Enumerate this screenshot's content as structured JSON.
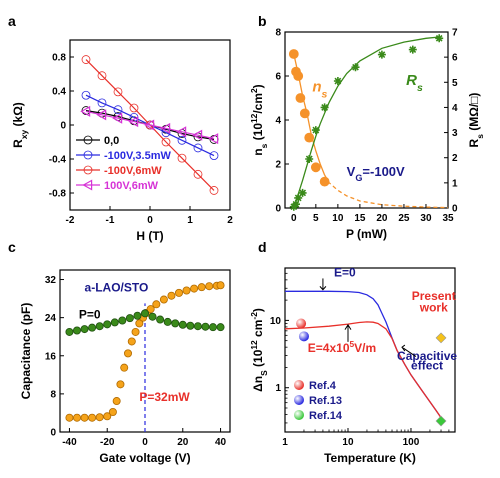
{
  "chart_data": [
    {
      "panel": "a",
      "type": "line",
      "xlabel": "H (T)",
      "ylabel": "R",
      "ylabel_sub": "xy",
      "ylabel_unit": " (kΩ)",
      "xlim": [
        -2,
        2
      ],
      "ylim": [
        -1.0,
        1.0
      ],
      "xticks": [
        -2,
        -1,
        0,
        1,
        2
      ],
      "yticks": [
        -0.8,
        -0.4,
        0,
        0.4,
        0.8
      ],
      "ytick_labels": [
        "-0.8",
        "-0.4",
        "0",
        "0.4",
        "0.8"
      ],
      "legend_position": "bottom-left",
      "series": [
        {
          "name": "0,0",
          "color": "#000000",
          "marker": "circle",
          "x": [
            -1.6,
            -1.2,
            -0.8,
            -0.4,
            0,
            0.4,
            0.8,
            1.2,
            1.6
          ],
          "y": [
            0.17,
            0.14,
            0.1,
            0.05,
            0.0,
            -0.05,
            -0.1,
            -0.14,
            -0.17
          ]
        },
        {
          "name": "-100V,3.5mW",
          "color": "#2a2ae0",
          "marker": "circle",
          "x": [
            -1.6,
            -1.2,
            -0.8,
            -0.4,
            0,
            0.4,
            0.8,
            1.2,
            1.6
          ],
          "y": [
            0.35,
            0.26,
            0.18,
            0.09,
            0.0,
            -0.09,
            -0.18,
            -0.27,
            -0.36
          ]
        },
        {
          "name": "-100V,6mW",
          "color": "#e8302a",
          "marker": "circle",
          "x": [
            -1.6,
            -1.2,
            -0.8,
            -0.4,
            0,
            0.4,
            0.8,
            1.2,
            1.6
          ],
          "y": [
            0.77,
            0.58,
            0.39,
            0.2,
            0.0,
            -0.2,
            -0.39,
            -0.58,
            -0.77
          ]
        },
        {
          "name": "100V,6mW",
          "color": "#d634d6",
          "marker": "triangle-left",
          "x": [
            -1.6,
            -1.2,
            -0.8,
            -0.4,
            0,
            0.4,
            0.8,
            1.2,
            1.6
          ],
          "y": [
            0.16,
            0.12,
            0.08,
            0.04,
            0.0,
            -0.04,
            -0.08,
            -0.12,
            -0.16
          ]
        }
      ]
    },
    {
      "panel": "b",
      "type": "scatter",
      "xlabel": "P (mW)",
      "ylabel": "n",
      "ylabel_sub": "s",
      "ylabel_unit": " (10",
      "ylabel_sup": "12",
      "ylabel_tail": "/cm",
      "ylabel_sup2": "2",
      "ylabel_close": ")",
      "y2label": "R",
      "y2label_sub": "s",
      "y2label_unit": " (MΩ/□)",
      "xlim": [
        -2,
        35
      ],
      "ylim": [
        0,
        8
      ],
      "y2lim": [
        0,
        7
      ],
      "xticks": [
        0,
        5,
        10,
        15,
        20,
        25,
        30,
        35
      ],
      "yticks": [
        0,
        2,
        4,
        6,
        8
      ],
      "y2ticks": [
        0,
        1,
        2,
        3,
        4,
        5,
        6,
        7
      ],
      "annotations": [
        {
          "text": "n",
          "sub": "s",
          "color": "#f5922a"
        },
        {
          "text": "R",
          "sub": "s",
          "color": "#3a8a1a"
        },
        {
          "text": "V",
          "sub": "G",
          "tail": "=-100V",
          "color": "#1a1a8a"
        }
      ],
      "series": [
        {
          "name": "n_s",
          "axis": "left",
          "color": "#f5922a",
          "marker": "circle",
          "x": [
            0,
            0.5,
            1,
            1.5,
            2.5,
            3.5,
            5,
            7
          ],
          "y": [
            7.0,
            6.2,
            6.0,
            5.0,
            4.3,
            3.2,
            1.85,
            1.2
          ],
          "fit_x": [
            0,
            1,
            2,
            3,
            4,
            5,
            6,
            7,
            8,
            10,
            12,
            15,
            20,
            25,
            30,
            35
          ],
          "fit_y": [
            7.0,
            6.1,
            5.1,
            4.3,
            3.3,
            2.6,
            2.0,
            1.5,
            1.15,
            0.8,
            0.55,
            0.32,
            0.15,
            0.08,
            0.04,
            0.02
          ]
        },
        {
          "name": "R_s",
          "axis": "right",
          "color": "#3a8a1a",
          "marker": "star",
          "x": [
            0,
            0.5,
            1,
            2,
            3.5,
            5,
            7,
            10,
            14,
            20,
            27,
            33
          ],
          "y": [
            0.05,
            0.15,
            0.4,
            0.6,
            1.95,
            3.1,
            4.0,
            5.05,
            5.6,
            6.1,
            6.3,
            6.75
          ],
          "fit_x": [
            0,
            1,
            2,
            3,
            4,
            5,
            6,
            8,
            10,
            12,
            15,
            20,
            25,
            30,
            33
          ],
          "fit_y": [
            0.0,
            0.55,
            1.1,
            1.7,
            2.3,
            2.85,
            3.35,
            4.2,
            4.85,
            5.35,
            5.85,
            6.35,
            6.6,
            6.75,
            6.8
          ]
        }
      ]
    },
    {
      "panel": "c",
      "type": "scatter",
      "xlabel": "Gate voltage (V)",
      "ylabel": "Capacitance (pF)",
      "xlim": [
        -45,
        45
      ],
      "ylim": [
        0,
        34
      ],
      "xticks": [
        -40,
        -20,
        0,
        20,
        40
      ],
      "yticks": [
        0,
        8,
        16,
        24,
        32
      ],
      "annotations": [
        {
          "text": "a-LAO/STO",
          "color": "#1a1a8a"
        },
        {
          "text": "P=0",
          "color": "#000000"
        },
        {
          "text": "P=32mW",
          "color": "#e8302a"
        }
      ],
      "series": [
        {
          "name": "P=0",
          "color": "#3a8a1a",
          "marker": "circle",
          "x": [
            -40,
            -36,
            -32,
            -28,
            -24,
            -20,
            -16,
            -12,
            -8,
            -4,
            0,
            4,
            8,
            12,
            16,
            20,
            24,
            28,
            32,
            36,
            40
          ],
          "y": [
            21.0,
            21.3,
            21.6,
            21.9,
            22.2,
            22.6,
            23.0,
            23.4,
            23.9,
            24.4,
            24.9,
            24.2,
            23.6,
            23.1,
            22.8,
            22.5,
            22.3,
            22.2,
            22.1,
            22.0,
            22.0
          ]
        },
        {
          "name": "P=32mW",
          "color": "#f5a31a",
          "marker": "circle",
          "x": [
            -40,
            -36,
            -32,
            -28,
            -24,
            -20,
            -17,
            -15,
            -13,
            -11,
            -9,
            -7,
            -5,
            -3,
            -1,
            1,
            3,
            6,
            10,
            14,
            18,
            22,
            26,
            30,
            34,
            38,
            40
          ],
          "y": [
            3.0,
            3.0,
            3.0,
            3.0,
            3.1,
            3.3,
            4.2,
            6.5,
            10.0,
            13.5,
            16.5,
            19.0,
            21.0,
            22.8,
            24.0,
            25.0,
            25.8,
            26.8,
            27.8,
            28.6,
            29.2,
            29.7,
            30.1,
            30.4,
            30.6,
            30.7,
            30.8
          ]
        }
      ]
    },
    {
      "panel": "d",
      "type": "line",
      "xlabel": "Temperature (K)",
      "ylabel": "Δn",
      "ylabel_sub": "S",
      "ylabel_unit": " (10",
      "ylabel_sup": "12",
      "ylabel_tail": " cm",
      "ylabel_sup2": "-2",
      "ylabel_close": ")",
      "xscale": "log",
      "yscale": "log",
      "xlim": [
        1,
        500
      ],
      "ylim": [
        0.22,
        60
      ],
      "xticks": [
        1,
        10,
        100
      ],
      "yticks": [
        1,
        10
      ],
      "annotations": [
        {
          "text": "E=0",
          "color": "#1a1a8a"
        },
        {
          "text": "E=4x10",
          "sup": "5",
          "tail": "V/m",
          "color": "#e8302a"
        },
        {
          "text": "Present",
          "color": "#e8302a"
        },
        {
          "text": "work",
          "color": "#e8302a"
        },
        {
          "text": "Capacitive",
          "color": "#1a1a8a"
        },
        {
          "text": "effect",
          "color": "#1a1a8a"
        }
      ],
      "legend": [
        {
          "name": "Ref.4",
          "color": "#e8302a"
        },
        {
          "name": "Ref.13",
          "color": "#2a2ae0"
        },
        {
          "name": "Ref.14",
          "color": "#3ac83a"
        }
      ],
      "series": [
        {
          "name": "E=0",
          "color": "#2a2ae0",
          "x": [
            1,
            2,
            5,
            10,
            15,
            20,
            25,
            30,
            40,
            50,
            60,
            80,
            100,
            150,
            200,
            250,
            300
          ],
          "y": [
            27,
            27,
            27,
            26.8,
            26,
            24,
            21,
            17,
            9.5,
            5.5,
            3.6,
            2.2,
            1.55,
            0.9,
            0.62,
            0.46,
            0.36
          ]
        },
        {
          "name": "E=4x10^5V/m",
          "color": "#e8302a",
          "x": [
            1,
            2,
            5,
            10,
            15,
            20,
            25,
            30,
            40,
            50,
            60,
            80,
            100,
            150,
            200,
            250,
            300
          ],
          "y": [
            7.5,
            7.7,
            8.2,
            8.8,
            9.3,
            9.5,
            9.4,
            9.0,
            7.5,
            5.4,
            3.6,
            2.2,
            1.55,
            0.9,
            0.62,
            0.46,
            0.36
          ]
        }
      ],
      "points": [
        {
          "name": "Ref.4",
          "x": 1.8,
          "y": 9.0,
          "color": "#e8302a",
          "marker": "sphere"
        },
        {
          "name": "Ref.13",
          "x": 2.0,
          "y": 5.8,
          "color": "#2a2ae0",
          "marker": "sphere"
        },
        {
          "name": "Ref.14",
          "x": 300,
          "y": 0.32,
          "color": "#3ac83a",
          "marker": "diamond"
        },
        {
          "name": "Present work",
          "x": 300,
          "y": 5.5,
          "color": "#f5c21a",
          "marker": "diamond"
        }
      ]
    }
  ],
  "panel_labels": [
    "a",
    "b",
    "c",
    "d"
  ]
}
